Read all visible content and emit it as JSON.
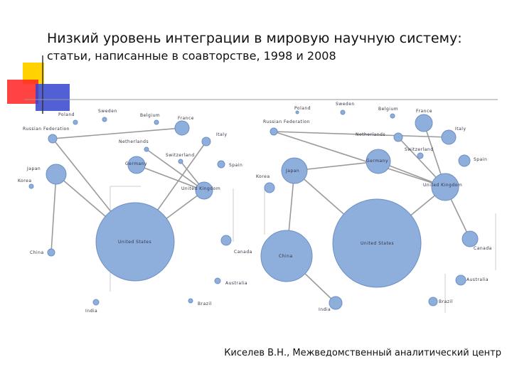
{
  "header": {
    "title": [
      "Низкий уровень интеграции в мировую научную систему:",
      "статьи, написанные в соавторстве, 1998 и 2008"
    ]
  },
  "networks": [
    {
      "nodes": [
        {
          "label": "Poland"
        },
        {
          "label": "Sweden"
        },
        {
          "label": "Belgium"
        },
        {
          "label": "France"
        },
        {
          "label": "Italy"
        },
        {
          "label": "Russian Federation"
        },
        {
          "label": "Netherlands"
        },
        {
          "label": "Switzerland"
        },
        {
          "label": "Spain"
        },
        {
          "label": "Germany"
        },
        {
          "label": "Japan"
        },
        {
          "label": "Korea"
        },
        {
          "label": "United Kingdom"
        },
        {
          "label": "United States"
        },
        {
          "label": "Canada"
        },
        {
          "label": "China"
        },
        {
          "label": "Australia"
        },
        {
          "label": "Brazil"
        },
        {
          "label": "India"
        }
      ]
    },
    {
      "nodes": [
        {
          "label": "Poland"
        },
        {
          "label": "Sweden"
        },
        {
          "label": "Belgium"
        },
        {
          "label": "France"
        },
        {
          "label": "Italy"
        },
        {
          "label": "Russian Federation"
        },
        {
          "label": "Netherlands"
        },
        {
          "label": "Switzerland"
        },
        {
          "label": "Spain"
        },
        {
          "label": "Germany"
        },
        {
          "label": "Japan"
        },
        {
          "label": "Korea"
        },
        {
          "label": "United Kingdom"
        },
        {
          "label": "United States"
        },
        {
          "label": "Canada"
        },
        {
          "label": "China"
        },
        {
          "label": "Australia"
        },
        {
          "label": "Brazil"
        },
        {
          "label": "India"
        }
      ]
    }
  ],
  "footer": "Киселев В.Н., Межведомственный аналитический центр"
}
